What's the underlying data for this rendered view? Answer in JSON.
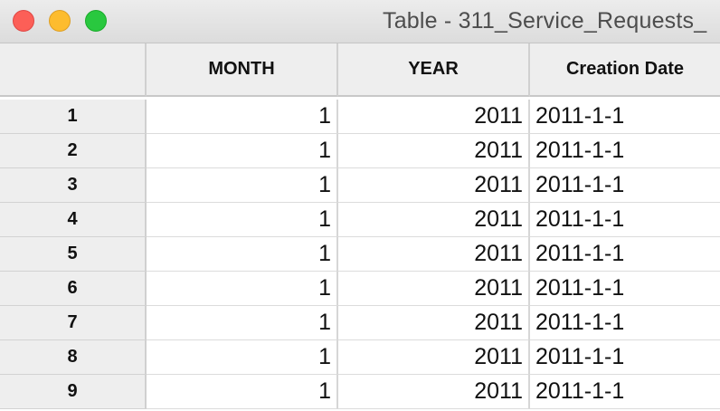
{
  "window": {
    "title": "Table - 311_Service_Requests_"
  },
  "table": {
    "columns": [
      "MONTH",
      "YEAR",
      "Creation Date"
    ],
    "rows": [
      {
        "id": "1",
        "month": "1",
        "year": "2011",
        "date": "2011-1-1"
      },
      {
        "id": "2",
        "month": "1",
        "year": "2011",
        "date": "2011-1-1"
      },
      {
        "id": "3",
        "month": "1",
        "year": "2011",
        "date": "2011-1-1"
      },
      {
        "id": "4",
        "month": "1",
        "year": "2011",
        "date": "2011-1-1"
      },
      {
        "id": "5",
        "month": "1",
        "year": "2011",
        "date": "2011-1-1"
      },
      {
        "id": "6",
        "month": "1",
        "year": "2011",
        "date": "2011-1-1"
      },
      {
        "id": "7",
        "month": "1",
        "year": "2011",
        "date": "2011-1-1"
      },
      {
        "id": "8",
        "month": "1",
        "year": "2011",
        "date": "2011-1-1"
      },
      {
        "id": "9",
        "month": "1",
        "year": "2011",
        "date": "2011-1-1"
      }
    ]
  }
}
